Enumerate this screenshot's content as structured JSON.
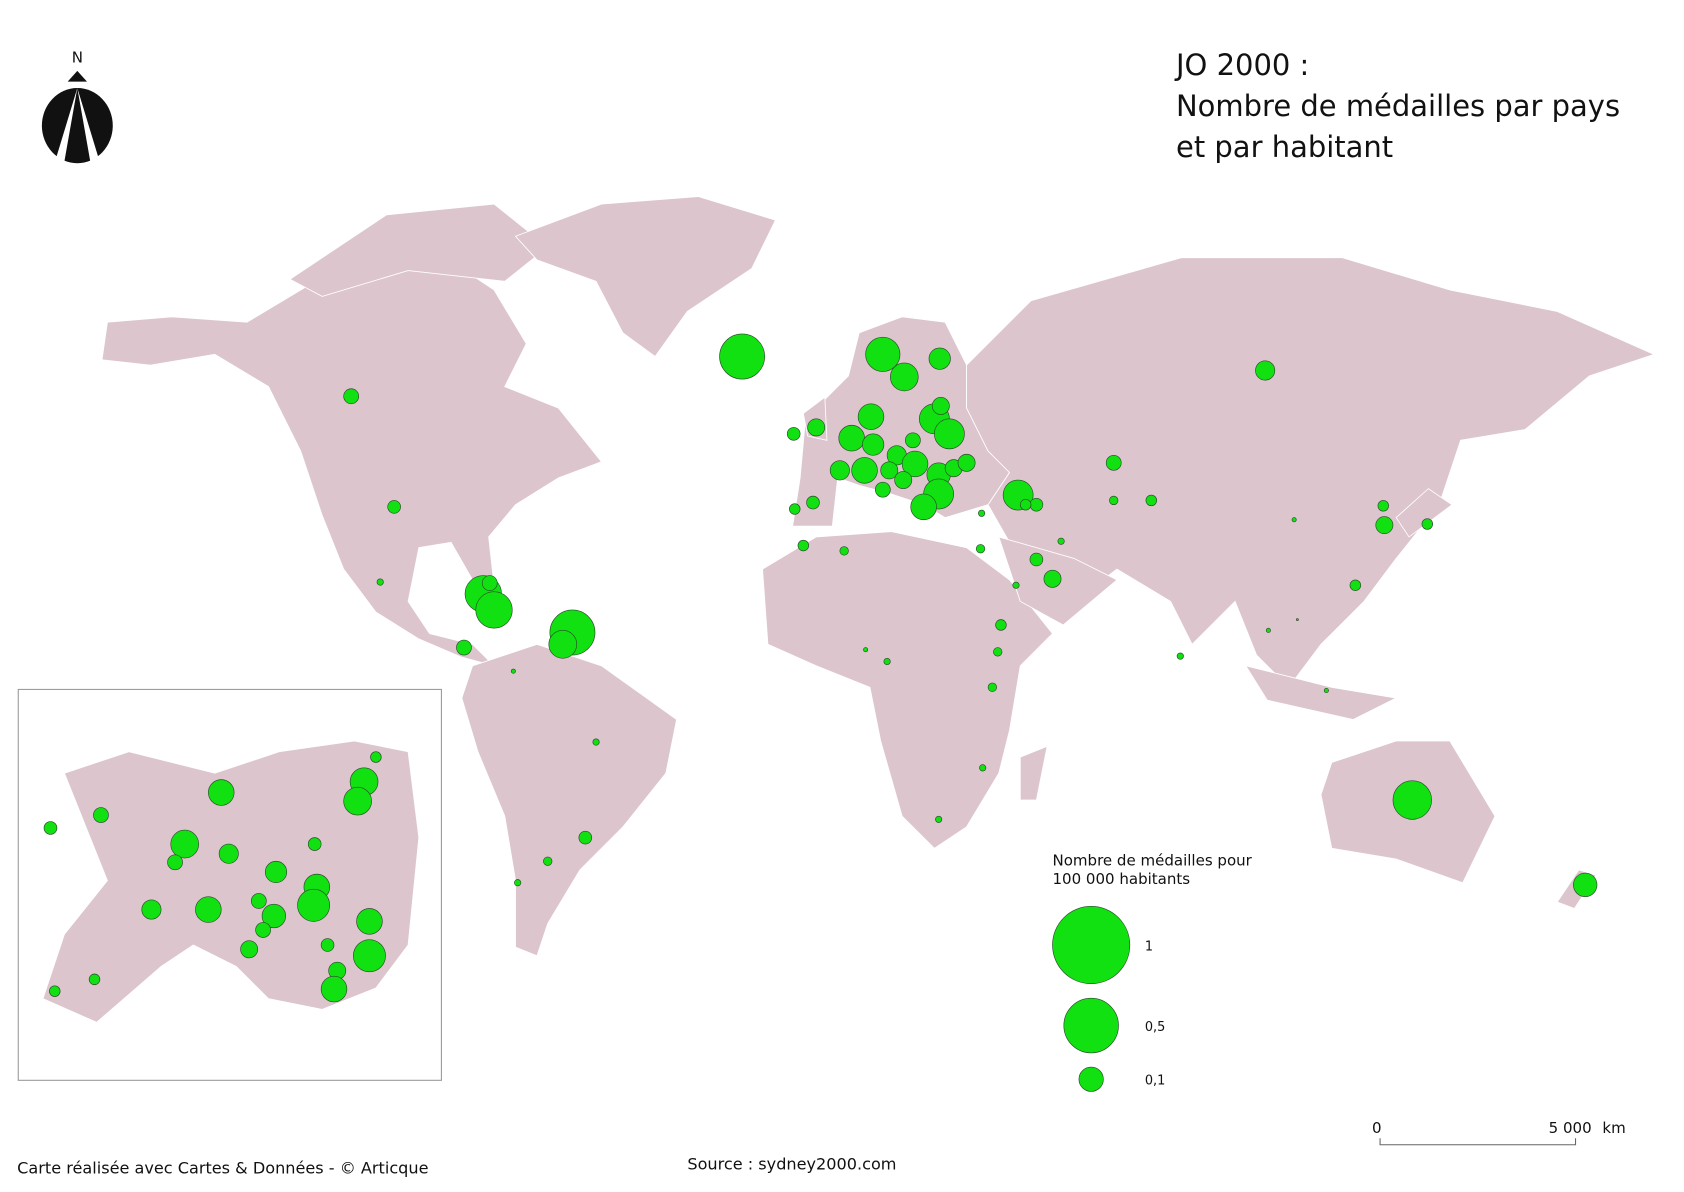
{
  "north": "N",
  "title": [
    "JO 2000 :",
    "Nombre de médailles par pays",
    "et par habitant"
  ],
  "legend": {
    "title": [
      "Nombre de médailles pour",
      "100 000 habitants"
    ],
    "sizes": [
      {
        "value": 1,
        "label": "1"
      },
      {
        "value": 0.5,
        "label": "0,5"
      },
      {
        "value": 0.1,
        "label": "0,1"
      }
    ]
  },
  "scale": {
    "start": "0",
    "end": "5 000",
    "unit": "km"
  },
  "credit": "Carte réalisée avec Cartes & Données - © Articque",
  "source": "Source : sydney2000.com"
}
